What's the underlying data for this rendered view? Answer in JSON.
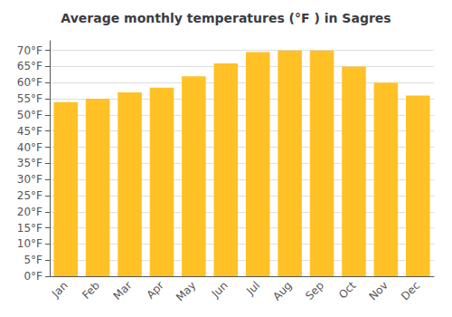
{
  "chart_data": {
    "type": "bar",
    "title": "Average monthly temperatures (°F ) in Sagres",
    "categories": [
      "Jan",
      "Feb",
      "Mar",
      "Apr",
      "May",
      "Jun",
      "Jul",
      "Aug",
      "Sep",
      "Oct",
      "Nov",
      "Dec"
    ],
    "values": [
      54,
      55,
      57,
      58.5,
      62,
      66,
      69.5,
      70,
      70,
      65,
      60,
      56
    ],
    "color": "#FFC125",
    "ylim": [
      0,
      73
    ],
    "yticks": [
      {
        "value": 0,
        "label": "0°F"
      },
      {
        "value": 5,
        "label": "5°F"
      },
      {
        "value": 10,
        "label": "10°F"
      },
      {
        "value": 15,
        "label": "15°F"
      },
      {
        "value": 20,
        "label": "20°F"
      },
      {
        "value": 25,
        "label": "25°F"
      },
      {
        "value": 30,
        "label": "30°F"
      },
      {
        "value": 35,
        "label": "35°F"
      },
      {
        "value": 40,
        "label": "40°F"
      },
      {
        "value": 45,
        "label": "45°F"
      },
      {
        "value": 50,
        "label": "50°F"
      },
      {
        "value": 55,
        "label": "55°F"
      },
      {
        "value": 60,
        "label": "60°F"
      },
      {
        "value": 65,
        "label": "65°F"
      },
      {
        "value": 70,
        "label": "70°F"
      }
    ],
    "grid": true
  }
}
